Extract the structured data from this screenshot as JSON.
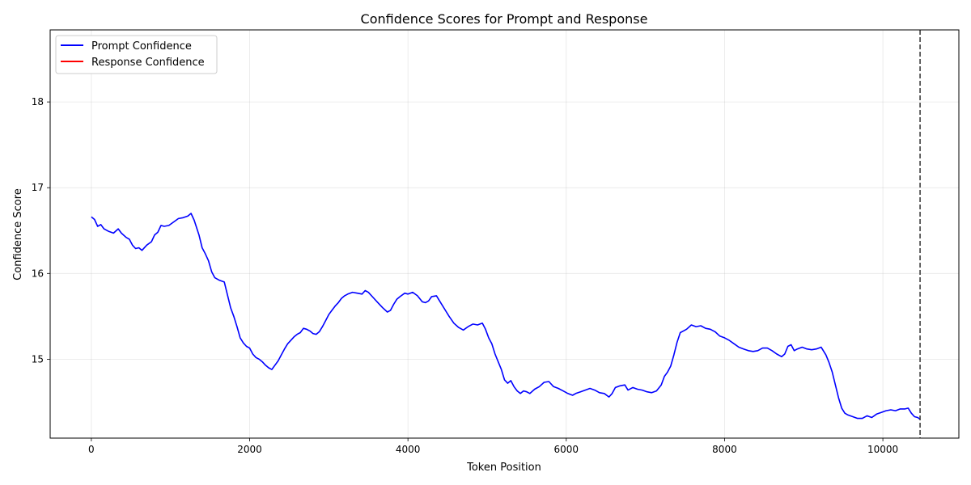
{
  "chart_data": {
    "type": "line",
    "title": "Confidence Scores for Prompt and Response",
    "xlabel": "Token Position",
    "ylabel": "Confidence Score",
    "xlim": [
      -520,
      10960
    ],
    "ylim": [
      14.08,
      18.84
    ],
    "xticks": [
      0,
      2000,
      4000,
      6000,
      8000,
      10000
    ],
    "yticks": [
      15,
      16,
      17,
      18
    ],
    "grid": true,
    "legend_position": "top-left",
    "vline_x": 10470,
    "series": [
      {
        "name": "Prompt Confidence",
        "color": "#0000ff",
        "points": [
          [
            0,
            16.66
          ],
          [
            40,
            16.63
          ],
          [
            80,
            16.55
          ],
          [
            120,
            16.57
          ],
          [
            160,
            16.52
          ],
          [
            220,
            16.49
          ],
          [
            280,
            16.47
          ],
          [
            340,
            16.52
          ],
          [
            380,
            16.47
          ],
          [
            440,
            16.42
          ],
          [
            480,
            16.4
          ],
          [
            520,
            16.33
          ],
          [
            560,
            16.29
          ],
          [
            600,
            16.3
          ],
          [
            640,
            16.27
          ],
          [
            700,
            16.33
          ],
          [
            760,
            16.37
          ],
          [
            800,
            16.45
          ],
          [
            840,
            16.48
          ],
          [
            880,
            16.56
          ],
          [
            920,
            16.55
          ],
          [
            980,
            16.56
          ],
          [
            1040,
            16.6
          ],
          [
            1100,
            16.64
          ],
          [
            1160,
            16.65
          ],
          [
            1220,
            16.67
          ],
          [
            1260,
            16.7
          ],
          [
            1300,
            16.62
          ],
          [
            1360,
            16.45
          ],
          [
            1400,
            16.3
          ],
          [
            1440,
            16.23
          ],
          [
            1480,
            16.15
          ],
          [
            1520,
            16.02
          ],
          [
            1560,
            15.95
          ],
          [
            1620,
            15.92
          ],
          [
            1680,
            15.9
          ],
          [
            1720,
            15.75
          ],
          [
            1760,
            15.6
          ],
          [
            1800,
            15.5
          ],
          [
            1840,
            15.38
          ],
          [
            1880,
            15.25
          ],
          [
            1920,
            15.19
          ],
          [
            1960,
            15.15
          ],
          [
            2000,
            15.13
          ],
          [
            2040,
            15.06
          ],
          [
            2080,
            15.02
          ],
          [
            2120,
            15.0
          ],
          [
            2160,
            14.97
          ],
          [
            2200,
            14.93
          ],
          [
            2240,
            14.9
          ],
          [
            2280,
            14.88
          ],
          [
            2320,
            14.93
          ],
          [
            2360,
            14.98
          ],
          [
            2400,
            15.05
          ],
          [
            2440,
            15.12
          ],
          [
            2480,
            15.18
          ],
          [
            2520,
            15.22
          ],
          [
            2560,
            15.26
          ],
          [
            2600,
            15.29
          ],
          [
            2640,
            15.31
          ],
          [
            2680,
            15.36
          ],
          [
            2720,
            15.35
          ],
          [
            2760,
            15.33
          ],
          [
            2800,
            15.3
          ],
          [
            2840,
            15.29
          ],
          [
            2880,
            15.32
          ],
          [
            2920,
            15.38
          ],
          [
            2960,
            15.45
          ],
          [
            3000,
            15.52
          ],
          [
            3040,
            15.57
          ],
          [
            3080,
            15.62
          ],
          [
            3120,
            15.66
          ],
          [
            3160,
            15.71
          ],
          [
            3200,
            15.74
          ],
          [
            3240,
            15.76
          ],
          [
            3300,
            15.78
          ],
          [
            3360,
            15.77
          ],
          [
            3420,
            15.76
          ],
          [
            3460,
            15.8
          ],
          [
            3500,
            15.78
          ],
          [
            3560,
            15.72
          ],
          [
            3620,
            15.66
          ],
          [
            3680,
            15.6
          ],
          [
            3740,
            15.55
          ],
          [
            3780,
            15.57
          ],
          [
            3820,
            15.64
          ],
          [
            3860,
            15.7
          ],
          [
            3900,
            15.73
          ],
          [
            3960,
            15.77
          ],
          [
            4000,
            15.76
          ],
          [
            4060,
            15.78
          ],
          [
            4120,
            15.74
          ],
          [
            4180,
            15.67
          ],
          [
            4220,
            15.66
          ],
          [
            4260,
            15.68
          ],
          [
            4300,
            15.73
          ],
          [
            4360,
            15.74
          ],
          [
            4420,
            15.65
          ],
          [
            4480,
            15.56
          ],
          [
            4520,
            15.5
          ],
          [
            4580,
            15.42
          ],
          [
            4640,
            15.37
          ],
          [
            4700,
            15.34
          ],
          [
            4760,
            15.38
          ],
          [
            4820,
            15.41
          ],
          [
            4880,
            15.4
          ],
          [
            4940,
            15.42
          ],
          [
            4980,
            15.35
          ],
          [
            5020,
            15.25
          ],
          [
            5060,
            15.18
          ],
          [
            5100,
            15.06
          ],
          [
            5140,
            14.97
          ],
          [
            5180,
            14.88
          ],
          [
            5220,
            14.76
          ],
          [
            5260,
            14.72
          ],
          [
            5300,
            14.75
          ],
          [
            5340,
            14.68
          ],
          [
            5380,
            14.63
          ],
          [
            5420,
            14.6
          ],
          [
            5460,
            14.63
          ],
          [
            5500,
            14.62
          ],
          [
            5540,
            14.6
          ],
          [
            5600,
            14.65
          ],
          [
            5660,
            14.68
          ],
          [
            5720,
            14.73
          ],
          [
            5780,
            14.74
          ],
          [
            5840,
            14.68
          ],
          [
            5900,
            14.66
          ],
          [
            5960,
            14.63
          ],
          [
            6020,
            14.6
          ],
          [
            6080,
            14.58
          ],
          [
            6120,
            14.6
          ],
          [
            6180,
            14.62
          ],
          [
            6240,
            14.64
          ],
          [
            6300,
            14.66
          ],
          [
            6360,
            14.64
          ],
          [
            6420,
            14.61
          ],
          [
            6480,
            14.6
          ],
          [
            6540,
            14.56
          ],
          [
            6580,
            14.6
          ],
          [
            6620,
            14.67
          ],
          [
            6680,
            14.69
          ],
          [
            6740,
            14.7
          ],
          [
            6780,
            14.64
          ],
          [
            6840,
            14.67
          ],
          [
            6900,
            14.65
          ],
          [
            6960,
            14.64
          ],
          [
            7020,
            14.62
          ],
          [
            7080,
            14.61
          ],
          [
            7140,
            14.63
          ],
          [
            7200,
            14.7
          ],
          [
            7240,
            14.8
          ],
          [
            7280,
            14.85
          ],
          [
            7320,
            14.92
          ],
          [
            7360,
            15.05
          ],
          [
            7400,
            15.2
          ],
          [
            7440,
            15.31
          ],
          [
            7480,
            15.33
          ],
          [
            7520,
            15.35
          ],
          [
            7580,
            15.4
          ],
          [
            7640,
            15.38
          ],
          [
            7700,
            15.39
          ],
          [
            7760,
            15.36
          ],
          [
            7820,
            15.35
          ],
          [
            7880,
            15.32
          ],
          [
            7940,
            15.27
          ],
          [
            8000,
            15.25
          ],
          [
            8060,
            15.22
          ],
          [
            8120,
            15.18
          ],
          [
            8180,
            15.14
          ],
          [
            8240,
            15.12
          ],
          [
            8300,
            15.1
          ],
          [
            8360,
            15.09
          ],
          [
            8420,
            15.1
          ],
          [
            8480,
            15.13
          ],
          [
            8540,
            15.13
          ],
          [
            8600,
            15.1
          ],
          [
            8660,
            15.06
          ],
          [
            8720,
            15.03
          ],
          [
            8760,
            15.06
          ],
          [
            8800,
            15.15
          ],
          [
            8840,
            15.17
          ],
          [
            8880,
            15.1
          ],
          [
            8920,
            15.12
          ],
          [
            8980,
            15.14
          ],
          [
            9040,
            15.12
          ],
          [
            9100,
            15.11
          ],
          [
            9160,
            15.12
          ],
          [
            9220,
            15.14
          ],
          [
            9280,
            15.05
          ],
          [
            9320,
            14.96
          ],
          [
            9360,
            14.85
          ],
          [
            9400,
            14.7
          ],
          [
            9440,
            14.55
          ],
          [
            9480,
            14.43
          ],
          [
            9520,
            14.37
          ],
          [
            9560,
            14.35
          ],
          [
            9620,
            14.33
          ],
          [
            9680,
            14.31
          ],
          [
            9740,
            14.31
          ],
          [
            9800,
            14.34
          ],
          [
            9860,
            14.32
          ],
          [
            9920,
            14.36
          ],
          [
            9980,
            14.38
          ],
          [
            10040,
            14.4
          ],
          [
            10100,
            14.41
          ],
          [
            10160,
            14.4
          ],
          [
            10220,
            14.42
          ],
          [
            10280,
            14.42
          ],
          [
            10320,
            14.43
          ],
          [
            10360,
            14.37
          ],
          [
            10400,
            14.33
          ],
          [
            10440,
            14.32
          ],
          [
            10470,
            14.3
          ]
        ]
      },
      {
        "name": "Response Confidence",
        "color": "#ff0000",
        "points": []
      }
    ]
  }
}
